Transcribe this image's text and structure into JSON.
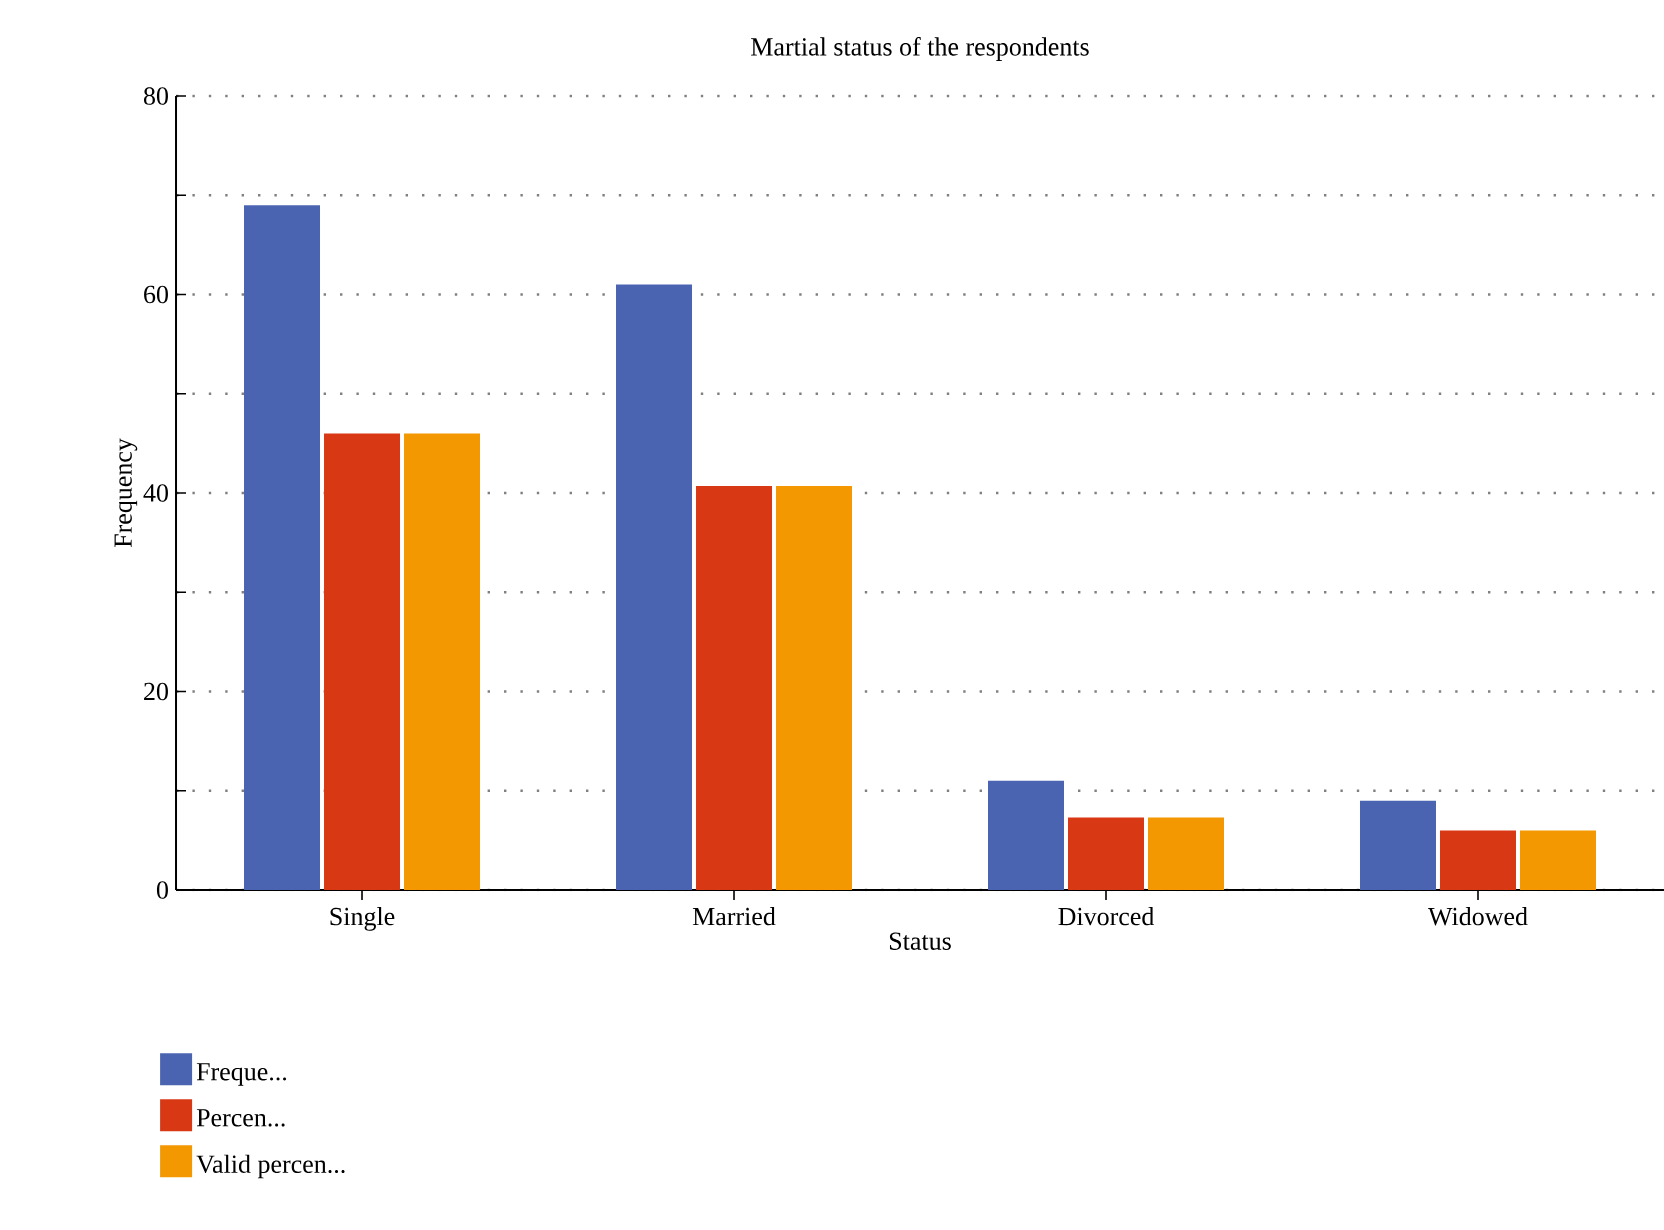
{
  "chart_data": {
    "type": "bar",
    "title": "Martial status of the respondents",
    "xlabel": "Status",
    "ylabel": "Frequency",
    "categories": [
      "Single",
      "Married",
      "Divorced",
      "Widowed"
    ],
    "series": [
      {
        "name": "Freque...",
        "color": "#4a64b1",
        "values": [
          69,
          61,
          11,
          9
        ]
      },
      {
        "name": "Percen...",
        "color": "#d93815",
        "values": [
          46.0,
          40.7,
          7.3,
          6.0
        ]
      },
      {
        "name": "Valid percen...",
        "color": "#f39800",
        "values": [
          46.0,
          40.7,
          7.3,
          6.0
        ]
      }
    ],
    "ylim": [
      0,
      80
    ],
    "yticks": [
      0,
      {
        "value": 10,
        "label": null
      },
      20,
      {
        "value": 30,
        "label": null
      },
      40,
      {
        "value": 50,
        "label": null
      },
      60,
      {
        "value": 70,
        "label": null
      },
      80
    ],
    "grid": "y",
    "legend": "bottom left"
  }
}
